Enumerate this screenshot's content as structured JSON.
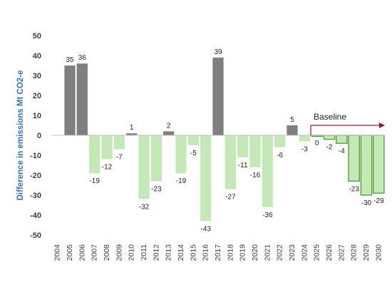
{
  "chart_data": {
    "type": "bar",
    "title": "",
    "xlabel": "",
    "ylabel": "Difference in emissions Mt CO2-e",
    "ylim": [
      -50,
      50
    ],
    "yticks": [
      -50,
      -40,
      -30,
      -20,
      -10,
      0,
      10,
      20,
      30,
      40,
      50
    ],
    "grid": false,
    "categories": [
      "2004",
      "2005",
      "2006",
      "2007",
      "2008",
      "2009",
      "2010",
      "2011",
      "2012",
      "2013",
      "2014",
      "2015",
      "2016",
      "2017",
      "2018",
      "2019",
      "2020",
      "2021",
      "2022",
      "2023",
      "2024",
      "2025",
      "2026",
      "2027",
      "2028",
      "2029",
      "2030"
    ],
    "values": [
      null,
      35,
      36,
      -19,
      -12,
      -7,
      1,
      -32,
      -23,
      2,
      -19,
      -5,
      -43,
      39,
      -27,
      -11,
      -16,
      -36,
      -6,
      5,
      -3,
      0,
      -2,
      -4,
      -23,
      -30,
      -29
    ],
    "data_labels": [
      "",
      "35",
      "36",
      "-19",
      "-12",
      "-7",
      "1",
      "-32",
      "-23",
      "2",
      "-19",
      "-5",
      "-43",
      "39",
      "-27",
      "-11",
      "-16",
      "-36",
      "-6",
      "5",
      "-3",
      "0",
      "-2",
      "-4",
      "-23",
      "-30",
      "-29"
    ],
    "projection_from": "2025",
    "colors": {
      "positive": "#7f7f7f",
      "negative": "#c5e8b7",
      "projection_fill": "#c5e8b7",
      "projection_edge": "#4e9a33",
      "axis_title": "#2e75b6",
      "annotation_arrow": "#8b1a4a"
    },
    "annotation": {
      "text": "Baseline",
      "from": "2025",
      "to": "2030",
      "style": "arrow-right"
    }
  }
}
